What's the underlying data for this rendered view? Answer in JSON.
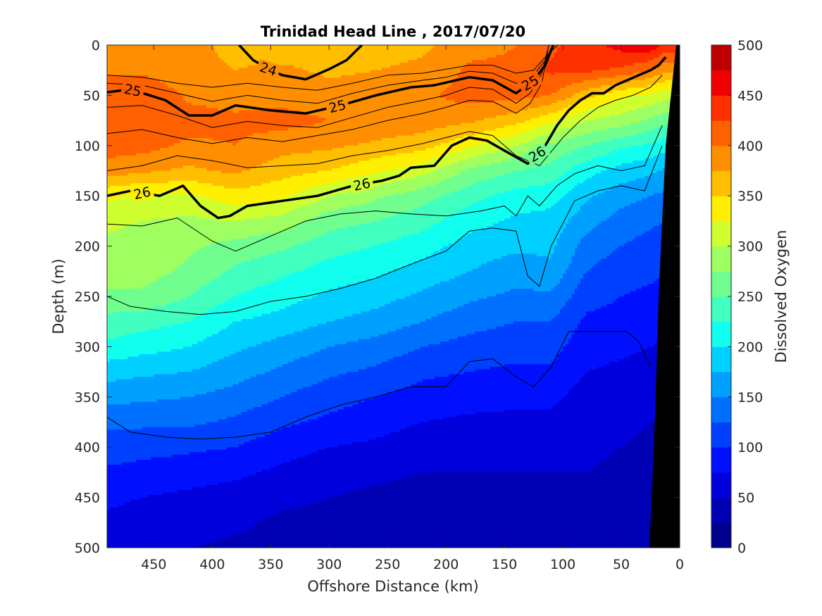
{
  "chart_data": {
    "type": "heatmap",
    "title": "Trinidad Head Line , 2017/07/20",
    "xlabel": "Offshore Distance (km)",
    "ylabel": "Depth (m)",
    "colorbar_label": "Dissolved Oxygen",
    "xlim": [
      490,
      0
    ],
    "ylim": [
      0,
      500
    ],
    "x_reversed": true,
    "y_reversed": true,
    "x_ticks": [
      450,
      400,
      350,
      300,
      250,
      200,
      150,
      100,
      50,
      0
    ],
    "y_ticks": [
      0,
      50,
      100,
      150,
      200,
      250,
      300,
      350,
      400,
      450,
      500
    ],
    "colorbar_ticks": [
      0,
      50,
      100,
      150,
      200,
      250,
      300,
      350,
      400,
      450,
      500
    ],
    "colorbar_levels": [
      {
        "min": 0,
        "max": 25,
        "color": "#00008f"
      },
      {
        "min": 25,
        "max": 50,
        "color": "#0000b5"
      },
      {
        "min": 50,
        "max": 75,
        "color": "#0000dc"
      },
      {
        "min": 75,
        "max": 100,
        "color": "#0010ff"
      },
      {
        "min": 100,
        "max": 125,
        "color": "#0040ff"
      },
      {
        "min": 125,
        "max": 150,
        "color": "#0070ff"
      },
      {
        "min": 150,
        "max": 175,
        "color": "#00a0ff"
      },
      {
        "min": 175,
        "max": 200,
        "color": "#00d0ff"
      },
      {
        "min": 200,
        "max": 225,
        "color": "#10ffef"
      },
      {
        "min": 225,
        "max": 250,
        "color": "#40ffbf"
      },
      {
        "min": 250,
        "max": 275,
        "color": "#70ff8f"
      },
      {
        "min": 275,
        "max": 300,
        "color": "#a0ff60"
      },
      {
        "min": 300,
        "max": 325,
        "color": "#d0ff30"
      },
      {
        "min": 325,
        "max": 350,
        "color": "#ffef00"
      },
      {
        "min": 350,
        "max": 375,
        "color": "#ffbf00"
      },
      {
        "min": 375,
        "max": 400,
        "color": "#ff8f00"
      },
      {
        "min": 400,
        "max": 425,
        "color": "#ff6000"
      },
      {
        "min": 425,
        "max": 450,
        "color": "#ff3000"
      },
      {
        "min": 450,
        "max": 475,
        "color": "#f00000"
      },
      {
        "min": 475,
        "max": 500,
        "color": "#bf0000"
      }
    ],
    "oxygen_profile": {
      "depth": [
        0,
        25,
        50,
        75,
        100,
        125,
        150,
        175,
        200,
        225,
        250,
        275,
        300,
        325,
        350,
        375,
        400,
        425,
        450,
        475,
        500
      ],
      "stations": [
        {
          "distance": 490,
          "values": [
            380,
            395,
            420,
            420,
            410,
            390,
            330,
            305,
            295,
            285,
            270,
            240,
            220,
            185,
            160,
            130,
            115,
            95,
            80,
            70,
            60
          ]
        },
        {
          "distance": 460,
          "values": [
            380,
            395,
            425,
            420,
            410,
            380,
            320,
            300,
            290,
            285,
            270,
            235,
            210,
            180,
            155,
            130,
            110,
            90,
            75,
            65,
            55
          ]
        },
        {
          "distance": 420,
          "values": [
            380,
            380,
            395,
            410,
            395,
            370,
            320,
            295,
            280,
            270,
            250,
            225,
            200,
            175,
            150,
            130,
            105,
            85,
            70,
            60,
            50
          ]
        },
        {
          "distance": 380,
          "values": [
            370,
            375,
            390,
            405,
            400,
            380,
            340,
            300,
            265,
            245,
            225,
            200,
            180,
            160,
            140,
            120,
            100,
            80,
            65,
            55,
            45
          ]
        },
        {
          "distance": 340,
          "values": [
            360,
            380,
            390,
            410,
            385,
            360,
            330,
            290,
            255,
            230,
            210,
            190,
            165,
            145,
            125,
            105,
            85,
            70,
            55,
            45,
            40
          ]
        },
        {
          "distance": 300,
          "values": [
            360,
            370,
            385,
            400,
            380,
            350,
            300,
            260,
            235,
            215,
            195,
            175,
            150,
            130,
            110,
            95,
            75,
            60,
            50,
            45,
            40
          ]
        },
        {
          "distance": 260,
          "values": [
            365,
            375,
            390,
            395,
            370,
            330,
            280,
            250,
            225,
            205,
            185,
            165,
            140,
            120,
            100,
            85,
            70,
            55,
            45,
            40,
            35
          ]
        },
        {
          "distance": 220,
          "values": [
            370,
            380,
            395,
            390,
            360,
            310,
            260,
            235,
            210,
            190,
            170,
            150,
            125,
            105,
            90,
            75,
            60,
            50,
            40,
            35,
            30
          ]
        },
        {
          "distance": 180,
          "values": [
            390,
            405,
            410,
            380,
            330,
            270,
            235,
            210,
            190,
            175,
            155,
            135,
            115,
            100,
            85,
            70,
            60,
            50,
            40,
            35,
            30
          ]
        },
        {
          "distance": 140,
          "values": [
            400,
            405,
            410,
            360,
            300,
            250,
            215,
            195,
            180,
            160,
            145,
            125,
            110,
            95,
            80,
            70,
            60,
            50,
            40,
            35,
            30
          ]
        },
        {
          "distance": 110,
          "values": [
            420,
            430,
            400,
            330,
            270,
            240,
            210,
            190,
            180,
            170,
            145,
            125,
            110,
            95,
            80,
            70,
            60,
            50,
            45,
            40,
            35
          ]
        },
        {
          "distance": 80,
          "values": [
            440,
            430,
            360,
            300,
            250,
            210,
            180,
            160,
            140,
            125,
            110,
            95,
            85,
            75,
            65,
            60,
            55,
            50,
            45,
            40,
            35
          ]
        },
        {
          "distance": 50,
          "values": [
            460,
            420,
            330,
            290,
            230,
            190,
            160,
            140,
            125,
            110,
            100,
            90,
            80,
            70,
            60,
            55,
            50,
            45,
            40,
            40,
            35
          ]
        },
        {
          "distance": 25,
          "values": [
            470,
            400,
            320,
            270,
            220,
            180,
            150,
            130,
            115,
            105,
            95,
            85,
            75,
            65,
            55,
            50,
            45,
            45,
            40,
            40,
            35
          ]
        },
        {
          "distance": 12,
          "values": [
            440,
            380,
            310,
            260,
            210,
            170,
            145,
            125,
            110,
            100,
            90,
            80,
            70,
            60,
            55,
            50,
            45,
            40,
            40,
            35,
            35
          ]
        }
      ]
    },
    "bathymetry": {
      "distance": [
        3,
        12,
        18,
        22,
        26
      ],
      "depth": [
        0,
        100,
        250,
        400,
        500
      ]
    },
    "contours": [
      {
        "label": "24",
        "bold": true,
        "distance": [
          377,
          365,
          350,
          340,
          320,
          300,
          285,
          272
        ],
        "depth": [
          0,
          15,
          25,
          30,
          34,
          24,
          15,
          0
        ]
      },
      {
        "label": "25",
        "bold": true,
        "distance": [
          490,
          470,
          440,
          420,
          400,
          380,
          350,
          320,
          290,
          260,
          230,
          210,
          180,
          160,
          140,
          125,
          115,
          110,
          108
        ],
        "depth": [
          47,
          44,
          55,
          70,
          70,
          60,
          65,
          68,
          60,
          50,
          42,
          40,
          32,
          35,
          48,
          35,
          20,
          5,
          0
        ]
      },
      {
        "label": "26",
        "bold": true,
        "distance": [
          490,
          470,
          445,
          425,
          410,
          395,
          385,
          370,
          340,
          310,
          280,
          255,
          240,
          230,
          210,
          195,
          180,
          165,
          150,
          130,
          115,
          105,
          95,
          85,
          75,
          65,
          55,
          45,
          35,
          25,
          18,
          12
        ],
        "depth": [
          150,
          145,
          150,
          140,
          160,
          172,
          170,
          160,
          155,
          150,
          140,
          135,
          130,
          122,
          120,
          100,
          92,
          95,
          105,
          118,
          100,
          80,
          65,
          55,
          48,
          48,
          40,
          35,
          30,
          25,
          20,
          12
        ]
      },
      {
        "label": "",
        "bold": false,
        "distance": [
          490,
          460,
          430,
          400,
          370,
          340,
          310,
          280,
          250,
          220,
          200,
          180,
          160,
          140,
          125,
          115,
          108,
          104
        ],
        "depth": [
          30,
          32,
          38,
          42,
          38,
          42,
          45,
          38,
          30,
          28,
          24,
          20,
          20,
          28,
          25,
          12,
          4,
          0
        ]
      },
      {
        "label": "",
        "bold": false,
        "distance": [
          490,
          460,
          430,
          400,
          370,
          340,
          310,
          280,
          250,
          220,
          200,
          180,
          160,
          140,
          125,
          115,
          108
        ],
        "depth": [
          38,
          40,
          48,
          56,
          50,
          55,
          58,
          48,
          40,
          35,
          32,
          26,
          28,
          38,
          30,
          15,
          0
        ]
      },
      {
        "label": "",
        "bold": false,
        "distance": [
          490,
          460,
          430,
          400,
          370,
          340,
          310,
          280,
          250,
          220,
          200,
          180,
          160,
          140,
          128,
          118,
          112
        ],
        "depth": [
          62,
          60,
          70,
          82,
          76,
          80,
          82,
          72,
          62,
          55,
          50,
          42,
          44,
          58,
          48,
          28,
          0
        ]
      },
      {
        "label": "",
        "bold": false,
        "distance": [
          490,
          460,
          430,
          400,
          370,
          340,
          310,
          280,
          250,
          220,
          200,
          180,
          160,
          140,
          128,
          118,
          112
        ],
        "depth": [
          88,
          84,
          92,
          98,
          92,
          96,
          90,
          84,
          75,
          68,
          62,
          55,
          56,
          68,
          58,
          38,
          0
        ]
      },
      {
        "label": "",
        "bold": false,
        "distance": [
          490,
          460,
          430,
          400,
          370,
          340,
          310,
          280,
          250,
          220,
          200,
          180,
          160,
          140,
          120,
          100,
          85,
          70,
          55,
          40,
          25,
          15
        ],
        "depth": [
          125,
          120,
          110,
          115,
          122,
          120,
          118,
          110,
          105,
          98,
          92,
          86,
          90,
          110,
          120,
          92,
          75,
          62,
          55,
          50,
          42,
          30
        ]
      },
      {
        "label": "",
        "bold": false,
        "distance": [
          490,
          460,
          430,
          400,
          380,
          350,
          320,
          290,
          260,
          230,
          200,
          170,
          150,
          140,
          130,
          120,
          105,
          90,
          70,
          50,
          30,
          15
        ],
        "depth": [
          178,
          180,
          172,
          195,
          205,
          190,
          175,
          168,
          165,
          168,
          170,
          165,
          160,
          170,
          150,
          160,
          140,
          128,
          120,
          125,
          120,
          80
        ]
      },
      {
        "label": "",
        "bold": false,
        "distance": [
          490,
          470,
          440,
          410,
          380,
          350,
          320,
          290,
          260,
          230,
          200,
          180,
          160,
          140,
          130,
          120,
          110,
          90,
          70,
          50,
          30,
          15
        ],
        "depth": [
          250,
          260,
          265,
          268,
          265,
          255,
          250,
          242,
          232,
          218,
          205,
          185,
          182,
          185,
          230,
          240,
          200,
          155,
          145,
          140,
          145,
          100
        ]
      },
      {
        "label": "",
        "bold": false,
        "distance": [
          490,
          470,
          440,
          410,
          380,
          350,
          320,
          290,
          260,
          230,
          200,
          180,
          160,
          140,
          125,
          110,
          95,
          80,
          60,
          45,
          35,
          25
        ],
        "depth": [
          370,
          385,
          390,
          392,
          390,
          385,
          370,
          358,
          350,
          340,
          340,
          315,
          312,
          330,
          340,
          320,
          285,
          285,
          285,
          285,
          295,
          320
        ]
      }
    ],
    "grid": false
  }
}
